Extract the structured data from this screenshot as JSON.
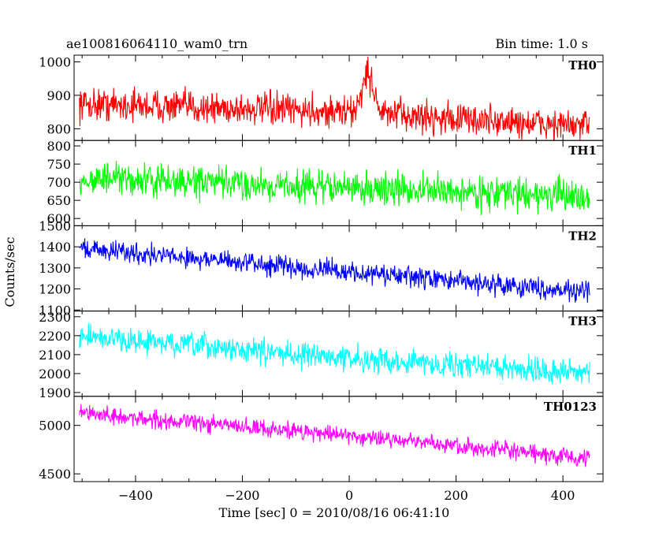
{
  "header": {
    "title": "ae100816064110_wam0_trn",
    "bin_time": "Bin time: 1.0 s"
  },
  "chart_data": {
    "type": "line",
    "xlabel": "Time [sec] 0 = 2010/08/16 06:41:10",
    "ylabel": "Counts/sec",
    "xlim": [
      -515,
      475
    ],
    "x_ticks": [
      -400,
      -200,
      0,
      200,
      400
    ],
    "x_range_data": [
      -505,
      450
    ],
    "bin_time_s": 1.0,
    "panels": [
      {
        "name": "TH0",
        "color": "#ff0000",
        "ylim": [
          765,
          1020
        ],
        "ticks": [
          800,
          900,
          1000
        ],
        "trend": [
          [
            -505,
            875
          ],
          [
            0,
            850
          ],
          [
            450,
            805
          ]
        ],
        "noise": 60,
        "feature": {
          "center": 35,
          "halfwidth": 25,
          "peak": 1015
        }
      },
      {
        "name": "TH1",
        "color": "#00ff00",
        "ylim": [
          580,
          815
        ],
        "ticks": [
          600,
          650,
          700,
          750,
          800
        ],
        "trend": [
          [
            -505,
            710
          ],
          [
            0,
            685
          ],
          [
            450,
            660
          ]
        ],
        "noise": 55
      },
      {
        "name": "TH2",
        "color": "#0000ff",
        "ylim": [
          1095,
          1500
        ],
        "ticks": [
          1100,
          1200,
          1300,
          1400,
          1500
        ],
        "trend": [
          [
            -505,
            1395
          ],
          [
            0,
            1280
          ],
          [
            450,
            1185
          ]
        ],
        "noise": 60
      },
      {
        "name": "TH3",
        "color": "#00ffff",
        "ylim": [
          1880,
          2330
        ],
        "ticks": [
          1900,
          2000,
          2100,
          2200,
          2300
        ],
        "trend": [
          [
            -505,
            2195
          ],
          [
            0,
            2080
          ],
          [
            450,
            2005
          ]
        ],
        "noise": 80
      },
      {
        "name": "TH0123",
        "color": "#ff00ff",
        "ylim": [
          4420,
          5300
        ],
        "ticks": [
          4500,
          5000
        ],
        "trend": [
          [
            -505,
            5120
          ],
          [
            0,
            4900
          ],
          [
            450,
            4650
          ]
        ],
        "noise": 110
      }
    ]
  }
}
